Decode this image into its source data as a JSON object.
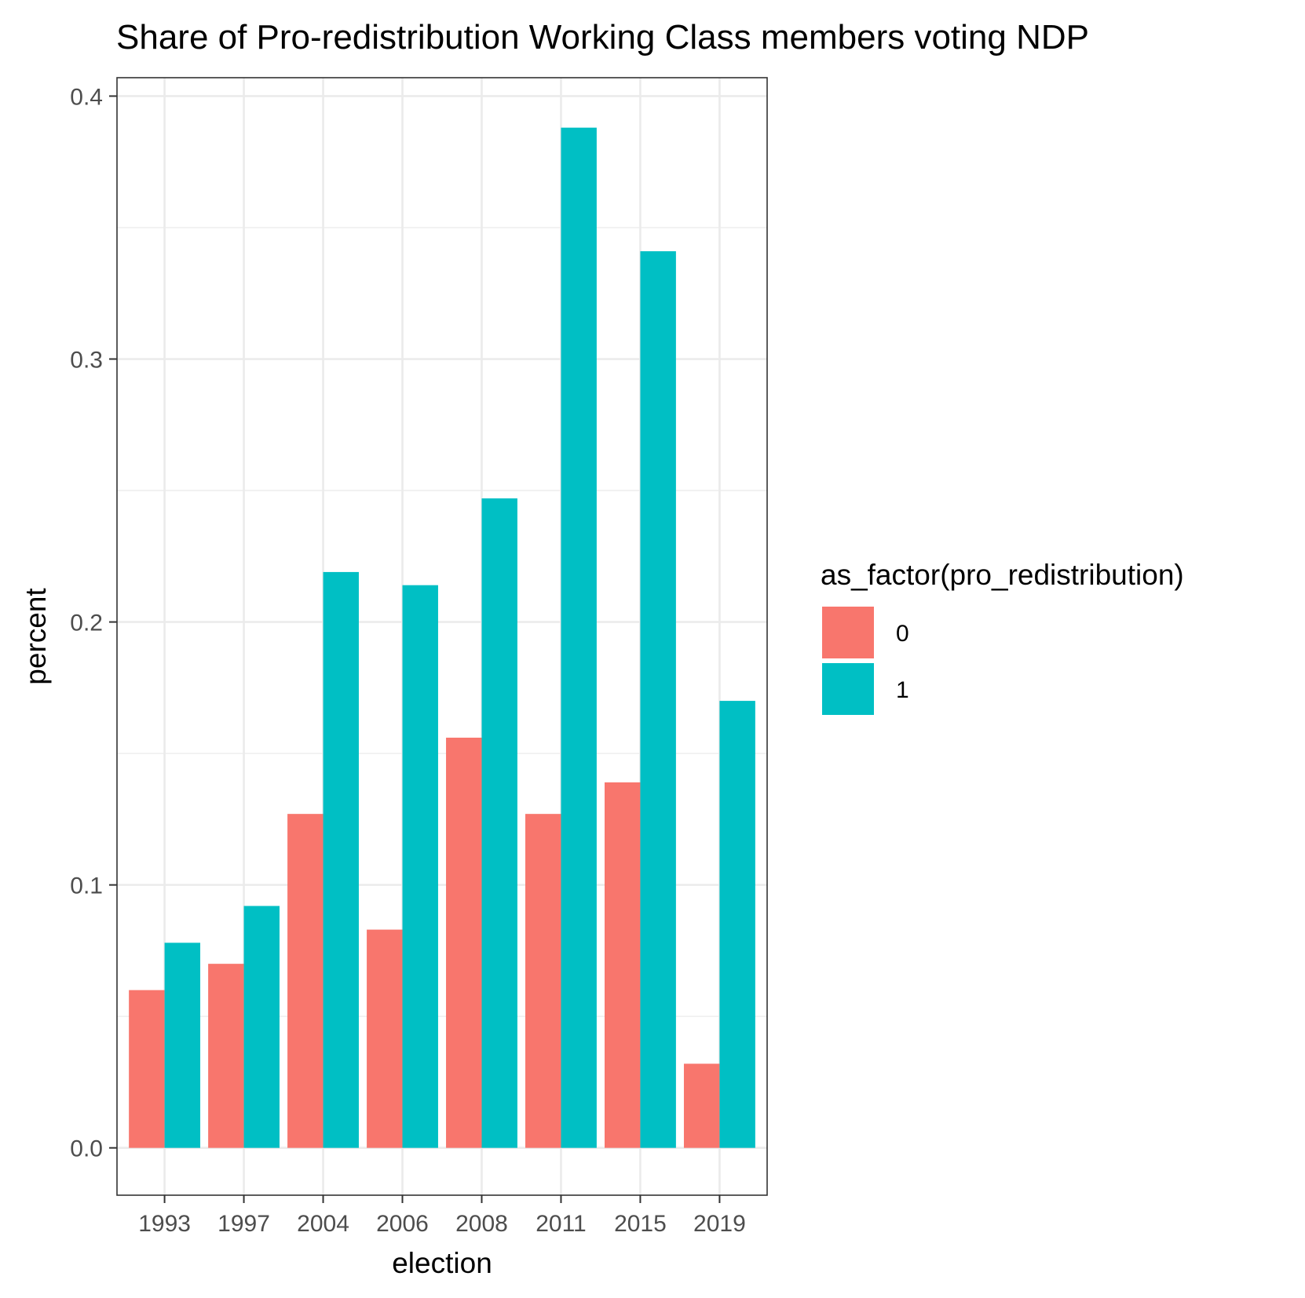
{
  "chart_data": {
    "type": "bar",
    "title": "Share of Pro-redistribution Working Class members voting NDP",
    "xlabel": "election",
    "ylabel": "percent",
    "categories": [
      "1993",
      "1997",
      "2004",
      "2006",
      "2008",
      "2011",
      "2015",
      "2019"
    ],
    "series": [
      {
        "name": "0",
        "color": "#f8766d",
        "values": [
          0.06,
          0.07,
          0.127,
          0.083,
          0.156,
          0.127,
          0.139,
          0.032
        ]
      },
      {
        "name": "1",
        "color": "#00bfc4",
        "values": [
          0.078,
          0.092,
          0.219,
          0.214,
          0.247,
          0.388,
          0.341,
          0.17
        ]
      }
    ],
    "ylim": [
      -0.018,
      0.407
    ],
    "y_ticks": [
      "0.0",
      "0.1",
      "0.2",
      "0.3",
      "0.4"
    ],
    "grid": true,
    "legend": {
      "title": "as_factor(pro_redistribution)",
      "position": "right"
    }
  }
}
